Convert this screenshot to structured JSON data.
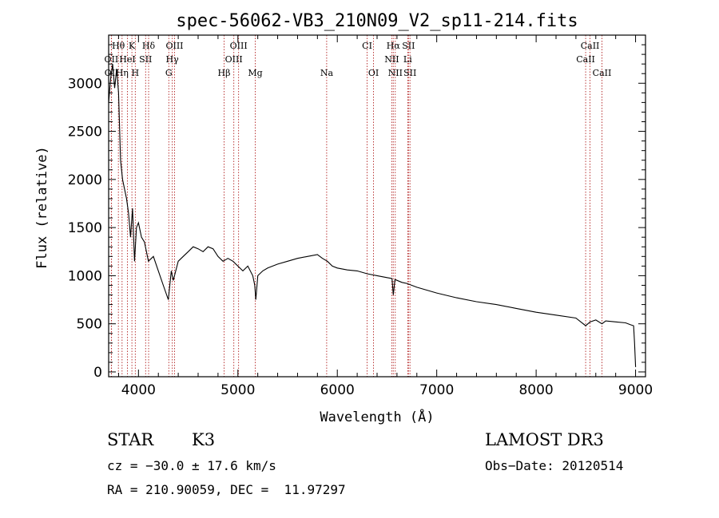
{
  "chart_data": {
    "type": "line",
    "title": "spec-56062-VB3_210N09_V2_sp11-214.fits",
    "xlabel": "Wavelength (Å)",
    "ylabel": "Flux (relative)",
    "xlim": [
      3700,
      9100
    ],
    "ylim": [
      -50,
      3500
    ],
    "xticks": [
      4000,
      5000,
      6000,
      7000,
      8000,
      9000
    ],
    "yticks": [
      0,
      500,
      1000,
      1500,
      2000,
      2500,
      3000
    ],
    "grid": false,
    "series": [
      {
        "name": "spectrum",
        "x": [
          3700,
          3720,
          3740,
          3760,
          3780,
          3800,
          3820,
          3840,
          3860,
          3880,
          3900,
          3920,
          3940,
          3960,
          3980,
          4000,
          4030,
          4060,
          4100,
          4150,
          4200,
          4250,
          4300,
          4330,
          4350,
          4400,
          4450,
          4500,
          4550,
          4600,
          4650,
          4700,
          4750,
          4800,
          4850,
          4900,
          4950,
          5000,
          5050,
          5100,
          5150,
          5170,
          5180,
          5200,
          5250,
          5300,
          5400,
          5500,
          5600,
          5700,
          5800,
          5850,
          5900,
          5950,
          6000,
          6100,
          6200,
          6300,
          6400,
          6500,
          6550,
          6563,
          6580,
          6650,
          6700,
          6800,
          6900,
          7000,
          7200,
          7400,
          7600,
          7800,
          8000,
          8200,
          8400,
          8498,
          8542,
          8600,
          8662,
          8700,
          8800,
          8900,
          8950,
          8980,
          8990,
          9000
        ],
        "y": [
          2800,
          3050,
          3200,
          2950,
          3150,
          2900,
          2200,
          2000,
          1900,
          1800,
          1650,
          1400,
          1700,
          1150,
          1500,
          1550,
          1400,
          1350,
          1150,
          1200,
          1050,
          900,
          750,
          1050,
          950,
          1150,
          1200,
          1250,
          1300,
          1280,
          1250,
          1300,
          1280,
          1200,
          1150,
          1180,
          1150,
          1100,
          1050,
          1100,
          1000,
          900,
          750,
          1000,
          1050,
          1080,
          1120,
          1150,
          1180,
          1200,
          1220,
          1180,
          1150,
          1100,
          1080,
          1060,
          1050,
          1020,
          1000,
          980,
          970,
          800,
          960,
          930,
          920,
          880,
          850,
          820,
          770,
          730,
          700,
          660,
          620,
          590,
          560,
          480,
          520,
          540,
          500,
          530,
          520,
          510,
          490,
          480,
          300,
          50
        ]
      }
    ],
    "lines": [
      {
        "label": "Hθ",
        "wavelength": 3798,
        "row": 1
      },
      {
        "label": "K",
        "wavelength": 3934,
        "row": 1
      },
      {
        "label": "Hδ",
        "wavelength": 4102,
        "row": 1
      },
      {
        "label": "OIII",
        "wavelength": 4363,
        "row": 1
      },
      {
        "label": "OIII",
        "wavelength": 5007,
        "row": 1
      },
      {
        "label": "CI",
        "wavelength": 6300,
        "row": 1
      },
      {
        "label": "Hα",
        "wavelength": 6563,
        "row": 1
      },
      {
        "label": "SII",
        "wavelength": 6716,
        "row": 1
      },
      {
        "label": "CaII",
        "wavelength": 8542,
        "row": 1
      },
      {
        "label": "OII",
        "wavelength": 3727,
        "row": 2
      },
      {
        "label": "HeI",
        "wavelength": 3889,
        "row": 2
      },
      {
        "label": "SII",
        "wavelength": 4072,
        "row": 2
      },
      {
        "label": "Hγ",
        "wavelength": 4340,
        "row": 2
      },
      {
        "label": "OIII",
        "wavelength": 4959,
        "row": 2
      },
      {
        "label": "NII",
        "wavelength": 6548,
        "row": 2
      },
      {
        "label": "Li",
        "wavelength": 6708,
        "row": 2
      },
      {
        "label": "CaII",
        "wavelength": 8498,
        "row": 2
      },
      {
        "label": "OII",
        "wavelength": 3729,
        "row": 3
      },
      {
        "label": "Hη",
        "wavelength": 3835,
        "row": 3
      },
      {
        "label": "H",
        "wavelength": 3968,
        "row": 3
      },
      {
        "label": "G",
        "wavelength": 4305,
        "row": 3
      },
      {
        "label": "Hβ",
        "wavelength": 4861,
        "row": 3
      },
      {
        "label": "Mg",
        "wavelength": 5175,
        "row": 3
      },
      {
        "label": "Na",
        "wavelength": 5893,
        "row": 3
      },
      {
        "label": "OI",
        "wavelength": 6364,
        "row": 3
      },
      {
        "label": "NII",
        "wavelength": 6583,
        "row": 3
      },
      {
        "label": "SII",
        "wavelength": 6731,
        "row": 3
      },
      {
        "label": "CaII",
        "wavelength": 8662,
        "row": 3
      }
    ]
  },
  "info": {
    "object_class": "STAR",
    "subclass": "K3",
    "survey": "LAMOST DR3",
    "cz": "cz = −30.0 ± 17.6 km/s",
    "obs_date": "Obs−Date: 20120514",
    "coords": "RA = 210.90059, DEC =  11.97297"
  },
  "colors": {
    "line_marker": "#b22222",
    "spectrum": "#000000"
  }
}
